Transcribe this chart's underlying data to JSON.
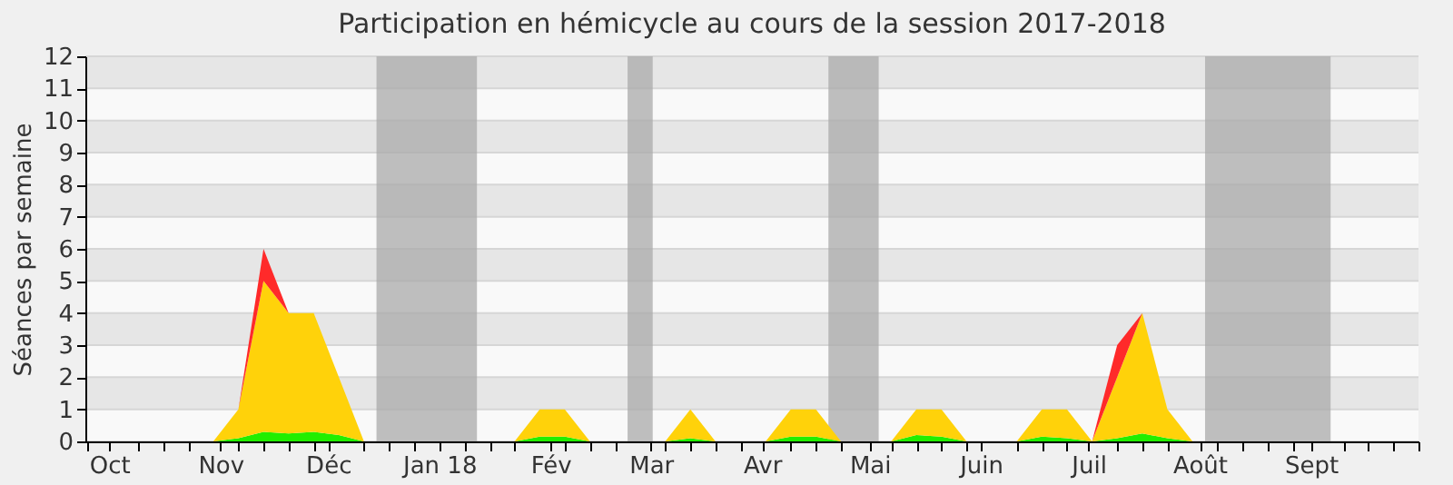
{
  "chart_data": {
    "type": "area",
    "stacked": true,
    "title": "Participation en hémicycle au cours de la session 2017-2018",
    "ylabel": "Séances par semaine",
    "x": [
      "2017-10-02",
      "2017-10-09",
      "2017-10-16",
      "2017-10-23",
      "2017-10-30",
      "2017-11-06",
      "2017-11-13",
      "2017-11-20",
      "2017-11-27",
      "2017-12-04",
      "2017-12-11",
      "2017-12-18",
      "2017-12-25",
      "2018-01-01",
      "2018-01-08",
      "2018-01-15",
      "2018-01-22",
      "2018-01-29",
      "2018-02-05",
      "2018-02-12",
      "2018-02-19",
      "2018-02-26",
      "2018-03-05",
      "2018-03-12",
      "2018-03-19",
      "2018-03-26",
      "2018-04-02",
      "2018-04-09",
      "2018-04-16",
      "2018-04-23",
      "2018-04-30",
      "2018-05-07",
      "2018-05-14",
      "2018-05-21",
      "2018-05-28",
      "2018-06-04",
      "2018-06-11",
      "2018-06-18",
      "2018-06-25",
      "2018-07-02",
      "2018-07-09",
      "2018-07-16",
      "2018-07-23",
      "2018-07-30",
      "2018-08-06",
      "2018-08-13",
      "2018-08-20",
      "2018-08-27",
      "2018-09-03",
      "2018-09-10",
      "2018-09-17",
      "2018-09-24"
    ],
    "series": [
      {
        "color": "#22ee00",
        "values": [
          0,
          0,
          0,
          0,
          0,
          0.1,
          0.3,
          0.25,
          0.3,
          0.2,
          0,
          0,
          0,
          0,
          0,
          0,
          0,
          0.15,
          0.15,
          0,
          0,
          0,
          0,
          0.1,
          0,
          0,
          0,
          0.15,
          0.15,
          0,
          0,
          0,
          0.2,
          0.15,
          0,
          0,
          0,
          0.15,
          0.1,
          0,
          0.1,
          0.25,
          0.1,
          0,
          0,
          0,
          0,
          0,
          0,
          0,
          0,
          0
        ]
      },
      {
        "color": "#ffd20a",
        "values": [
          0,
          0,
          0,
          0,
          0,
          0.9,
          4.7,
          3.75,
          3.7,
          1.8,
          0,
          0,
          0,
          0,
          0,
          0,
          0,
          0.85,
          0.85,
          0,
          0,
          0,
          0,
          0.9,
          0,
          0,
          0,
          0.85,
          0.85,
          0,
          0,
          0,
          0.8,
          0.85,
          0,
          0,
          0,
          0.85,
          0.9,
          0,
          1.9,
          3.75,
          0.9,
          0,
          0,
          0,
          0,
          0,
          0,
          0,
          0,
          0
        ]
      },
      {
        "color": "#ff2a2a",
        "values": [
          0,
          0,
          0,
          0,
          0,
          0,
          1,
          0,
          0,
          0,
          0,
          0,
          0,
          0,
          0,
          0,
          0,
          0,
          0,
          0,
          0,
          0,
          0,
          0,
          0,
          0,
          0,
          0,
          0,
          0,
          0,
          0,
          0,
          0,
          0,
          0,
          0,
          0,
          0,
          0,
          1,
          0,
          0,
          0,
          0,
          0,
          0,
          0,
          0,
          0,
          0,
          0
        ]
      }
    ],
    "bands": [
      {
        "axis": "x",
        "from": "2017-12-14T12:00",
        "to": "2018-01-11T12:00",
        "color": "#aaaaaa"
      },
      {
        "axis": "x",
        "from": "2018-02-22T12:00",
        "to": "2018-03-01T12:00",
        "color": "#aaaaaa"
      },
      {
        "axis": "x",
        "from": "2018-04-19T12:00",
        "to": "2018-05-03T12:00",
        "color": "#aaaaaa"
      },
      {
        "axis": "x",
        "from": "2018-08-02T12:00",
        "to": "2018-09-06T12:00",
        "color": "#aaaaaa"
      }
    ],
    "xlim": [
      "2017-09-24T08:00",
      "2018-10-01"
    ],
    "xticks": [
      {
        "value": "2017-09-25",
        "label": null
      },
      {
        "value": "2017-10-01",
        "label": "Oct"
      },
      {
        "value": "2017-10-09",
        "label": null
      },
      {
        "value": "2017-10-16",
        "label": null
      },
      {
        "value": "2017-10-23",
        "label": null
      },
      {
        "value": "2017-11-01",
        "label": "Nov"
      },
      {
        "value": "2017-11-06",
        "label": null
      },
      {
        "value": "2017-11-13",
        "label": null
      },
      {
        "value": "2017-11-20",
        "label": null
      },
      {
        "value": "2017-11-27",
        "label": null
      },
      {
        "value": "2017-12-01",
        "label": "Déc"
      },
      {
        "value": "2017-12-11",
        "label": null
      },
      {
        "value": "2017-12-18",
        "label": null
      },
      {
        "value": "2017-12-25",
        "label": null
      },
      {
        "value": "2018-01-01",
        "label": "Jan 18"
      },
      {
        "value": "2018-01-08",
        "label": null
      },
      {
        "value": "2018-01-15",
        "label": null
      },
      {
        "value": "2018-01-22",
        "label": null
      },
      {
        "value": "2018-02-01",
        "label": "Fév"
      },
      {
        "value": "2018-02-05",
        "label": null
      },
      {
        "value": "2018-02-12",
        "label": null
      },
      {
        "value": "2018-02-19",
        "label": null
      },
      {
        "value": "2018-03-01",
        "label": "Mar"
      },
      {
        "value": "2018-03-05",
        "label": null
      },
      {
        "value": "2018-03-12",
        "label": null
      },
      {
        "value": "2018-03-19",
        "label": null
      },
      {
        "value": "2018-03-26",
        "label": null
      },
      {
        "value": "2018-04-01",
        "label": "Avr"
      },
      {
        "value": "2018-04-09",
        "label": null
      },
      {
        "value": "2018-04-16",
        "label": null
      },
      {
        "value": "2018-04-23",
        "label": null
      },
      {
        "value": "2018-05-01",
        "label": "Mai"
      },
      {
        "value": "2018-05-07",
        "label": null
      },
      {
        "value": "2018-05-14",
        "label": null
      },
      {
        "value": "2018-05-21",
        "label": null
      },
      {
        "value": "2018-05-28",
        "label": null
      },
      {
        "value": "2018-06-01",
        "label": "Juin"
      },
      {
        "value": "2018-06-11",
        "label": null
      },
      {
        "value": "2018-06-18",
        "label": null
      },
      {
        "value": "2018-06-25",
        "label": null
      },
      {
        "value": "2018-07-01",
        "label": "Juil"
      },
      {
        "value": "2018-07-09",
        "label": null
      },
      {
        "value": "2018-07-16",
        "label": null
      },
      {
        "value": "2018-07-23",
        "label": null
      },
      {
        "value": "2018-08-01",
        "label": "Août"
      },
      {
        "value": "2018-08-06",
        "label": null
      },
      {
        "value": "2018-08-13",
        "label": null
      },
      {
        "value": "2018-08-20",
        "label": null
      },
      {
        "value": "2018-08-27",
        "label": null
      },
      {
        "value": "2018-09-01",
        "label": "Sept"
      },
      {
        "value": "2018-09-10",
        "label": null
      },
      {
        "value": "2018-09-17",
        "label": null
      },
      {
        "value": "2018-09-24",
        "label": null
      },
      {
        "value": "2018-10-01",
        "label": null
      }
    ],
    "ylim": [
      0,
      12
    ],
    "yticks": [
      0,
      1,
      2,
      3,
      4,
      5,
      6,
      7,
      8,
      9,
      10,
      11,
      12
    ],
    "grid": "y"
  }
}
